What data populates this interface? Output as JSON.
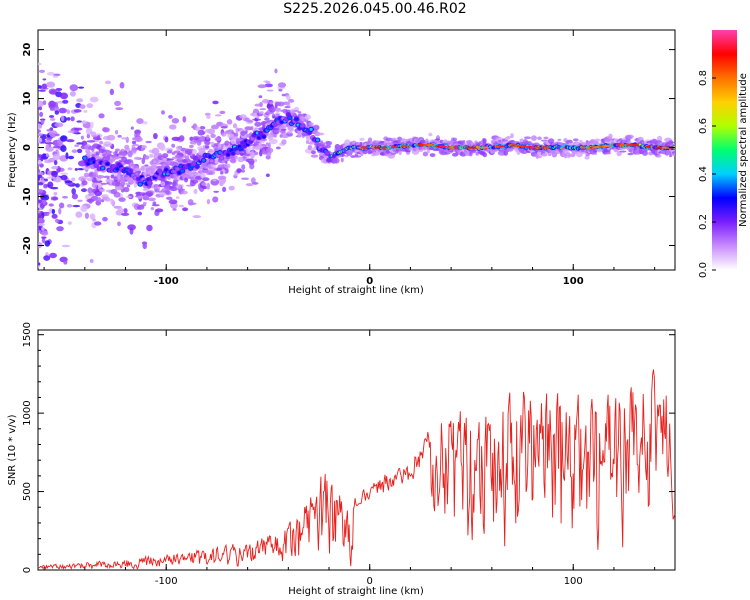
{
  "title": "S225.2026.045.00.46.R02",
  "chart_data": [
    {
      "type": "heatmap",
      "xlabel": "Height of straight line (km)",
      "ylabel": "Frequency (Hz)",
      "xlim": [
        -163,
        150
      ],
      "ylim": [
        -25,
        24
      ],
      "xticks": [
        -100,
        0,
        100
      ],
      "yticks": [
        -20,
        -10,
        0,
        10,
        20
      ],
      "ridge": {
        "x": [
          -140,
          -130,
          -120,
          -110,
          -100,
          -90,
          -80,
          -70,
          -60,
          -50,
          -45,
          -40,
          -35,
          -30,
          -25,
          -20,
          -15,
          -10,
          -5,
          0,
          10,
          20,
          30,
          40,
          50,
          60,
          70,
          80,
          90,
          100,
          110,
          120,
          130,
          140,
          150
        ],
        "y": [
          -3,
          -4,
          -5,
          -7,
          -5,
          -4,
          -2,
          -1,
          1,
          4,
          5,
          6,
          5,
          3,
          1,
          -2,
          -1,
          0,
          0,
          0,
          0,
          0.5,
          0.5,
          0,
          0,
          0,
          0.5,
          0,
          0,
          0,
          0,
          0.5,
          0.5,
          0,
          0
        ]
      },
      "colorbar": {
        "label": "Normalized spectral amplitude",
        "range": [
          0,
          1
        ],
        "ticks": [
          "0.0",
          "0.2",
          "0.4",
          "0.6",
          "0.8"
        ],
        "colors": [
          "#ffffff",
          "#c98cff",
          "#7a1fff",
          "#0000ff",
          "#00cfff",
          "#00ff70",
          "#b0ff00",
          "#ffd000",
          "#ff7000",
          "#ff0000",
          "#ff40b0"
        ]
      }
    },
    {
      "type": "line",
      "xlabel": "Height of straight line (km)",
      "ylabel": "SNR (10 * v/v)",
      "xlim": [
        -163,
        150
      ],
      "ylim": [
        0,
        1530
      ],
      "xticks": [
        -100,
        0,
        100
      ],
      "yticks": [
        0,
        500,
        1000,
        1500
      ],
      "color": "#e8201c",
      "envelope": {
        "x": [
          -163,
          -140,
          -120,
          -100,
          -80,
          -60,
          -45,
          -35,
          -25,
          -20,
          -10,
          0,
          10,
          20,
          30,
          40,
          60,
          80,
          100,
          120,
          140,
          150
        ],
        "y": [
          30,
          50,
          70,
          100,
          140,
          180,
          240,
          350,
          600,
          650,
          430,
          520,
          600,
          650,
          900,
          1050,
          1100,
          1200,
          1100,
          1100,
          1250,
          1100
        ]
      }
    }
  ]
}
